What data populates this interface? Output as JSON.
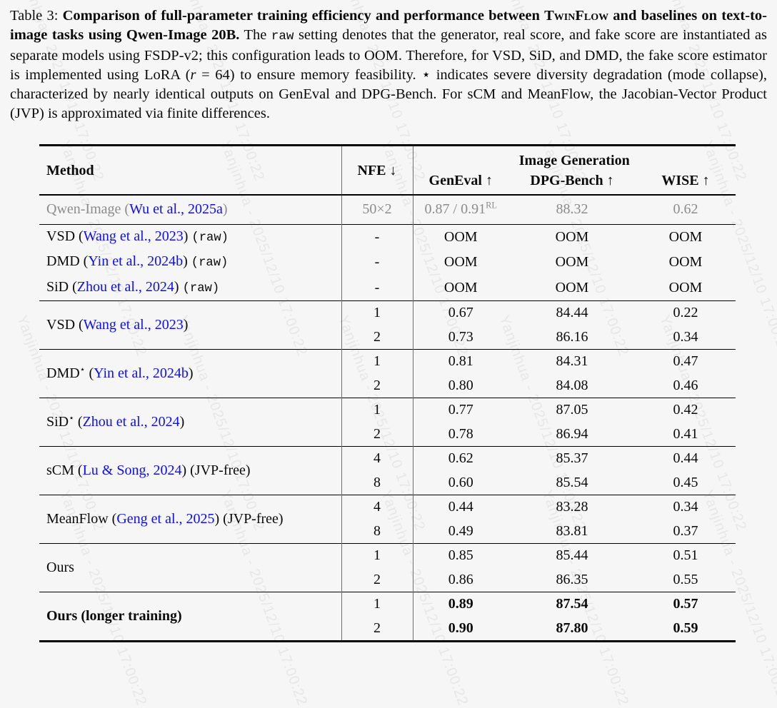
{
  "watermark": {
    "text": "Yanjinhua - 2025/12/10 17:00:22"
  },
  "caption": {
    "parts": [
      {
        "s": "label",
        "t": "Table 3: "
      },
      {
        "s": "bold",
        "t": "Comparison of full-parameter training efficiency and performance between "
      },
      {
        "s": "boldsc",
        "t": "TwinFlow"
      },
      {
        "s": "bold",
        "t": " and baselines on text-to-image tasks using Qwen-Image 20B."
      },
      {
        "t": " The "
      },
      {
        "s": "mono",
        "t": "raw"
      },
      {
        "t": " setting denotes that the generator, real score, and fake score are instantiated as separate models using FSDP-v2; this configuration leads to OOM. Therefore, for VSD, SiD, and DMD, the fake score estimator is implemented using LoRA ("
      },
      {
        "s": "it",
        "t": "r"
      },
      {
        "t": " = 64) to ensure memory feasibility. ⋆ indicates severe diversity degradation (mode collapse), characterized by nearly identical outputs on GenEval and DPG-Bench. For sCM and MeanFlow, the Jacobian-Vector Product (JVP) is approximated via finite differences."
      }
    ]
  },
  "table": {
    "header": {
      "method": "Method",
      "nfe": "NFE ↓",
      "group": "Image Generation",
      "cols": [
        "GenEval ↑",
        "DPG-Bench ↑",
        "WISE ↑"
      ]
    },
    "sections": [
      {
        "muted": true,
        "rows": [
          {
            "method": [
              {
                "t": "Qwen-Image ("
              },
              {
                "s": "cite",
                "t": "Wu et al., 2025a"
              },
              {
                "t": ")"
              }
            ],
            "nfe": "50×2",
            "vals": [
              [
                {
                  "t": "0.87 / 0.91"
                },
                {
                  "s": "sup",
                  "t": "RL"
                }
              ],
              "88.32",
              "0.62"
            ]
          }
        ]
      },
      {
        "rows": [
          {
            "method": [
              {
                "t": "VSD ("
              },
              {
                "s": "cite",
                "t": "Wang et al., 2023"
              },
              {
                "t": ") "
              },
              {
                "s": "mono",
                "t": "(raw)"
              }
            ],
            "nfe": "-",
            "vals": [
              "OOM",
              "OOM",
              "OOM"
            ]
          },
          {
            "method": [
              {
                "t": "DMD ("
              },
              {
                "s": "cite",
                "t": "Yin et al., 2024b"
              },
              {
                "t": ") "
              },
              {
                "s": "mono",
                "t": "(raw)"
              }
            ],
            "nfe": "-",
            "vals": [
              "OOM",
              "OOM",
              "OOM"
            ]
          },
          {
            "method": [
              {
                "t": "SiD ("
              },
              {
                "s": "cite",
                "t": "Zhou et al., 2024"
              },
              {
                "t": ") "
              },
              {
                "s": "mono",
                "t": "(raw)"
              }
            ],
            "nfe": "-",
            "vals": [
              "OOM",
              "OOM",
              "OOM"
            ]
          }
        ]
      },
      {
        "method": [
          {
            "t": "VSD ("
          },
          {
            "s": "cite",
            "t": "Wang et al., 2023"
          },
          {
            "t": ")"
          }
        ],
        "rows": [
          {
            "nfe": "1",
            "vals": [
              "0.67",
              "84.44",
              "0.22"
            ]
          },
          {
            "nfe": "2",
            "vals": [
              "0.73",
              "86.16",
              "0.34"
            ]
          }
        ]
      },
      {
        "method": [
          {
            "t": "DMD"
          },
          {
            "s": "sup",
            "t": "⋆"
          },
          {
            "t": " ("
          },
          {
            "s": "cite",
            "t": "Yin et al., 2024b"
          },
          {
            "t": ")"
          }
        ],
        "rows": [
          {
            "nfe": "1",
            "vals": [
              "0.81",
              "84.31",
              "0.47"
            ]
          },
          {
            "nfe": "2",
            "vals": [
              "0.80",
              "84.08",
              "0.46"
            ]
          }
        ]
      },
      {
        "method": [
          {
            "t": "SiD"
          },
          {
            "s": "sup",
            "t": "⋆"
          },
          {
            "t": " ("
          },
          {
            "s": "cite",
            "t": "Zhou et al., 2024"
          },
          {
            "t": ")"
          }
        ],
        "rows": [
          {
            "nfe": "1",
            "vals": [
              "0.77",
              "87.05",
              "0.42"
            ]
          },
          {
            "nfe": "2",
            "vals": [
              "0.78",
              "86.94",
              "0.41"
            ]
          }
        ]
      },
      {
        "method": [
          {
            "t": "sCM ("
          },
          {
            "s": "cite",
            "t": "Lu & Song, 2024"
          },
          {
            "t": ") (JVP-free)"
          }
        ],
        "rows": [
          {
            "nfe": "4",
            "vals": [
              "0.62",
              "85.37",
              "0.44"
            ]
          },
          {
            "nfe": "8",
            "vals": [
              "0.60",
              "85.54",
              "0.45"
            ]
          }
        ]
      },
      {
        "method": [
          {
            "t": "MeanFlow ("
          },
          {
            "s": "cite",
            "t": "Geng et al., 2025"
          },
          {
            "t": ") (JVP-free)"
          }
        ],
        "rows": [
          {
            "nfe": "4",
            "vals": [
              "0.44",
              "83.28",
              "0.34"
            ]
          },
          {
            "nfe": "8",
            "vals": [
              "0.49",
              "83.81",
              "0.37"
            ]
          }
        ]
      },
      {
        "method": [
          {
            "t": "Ours"
          }
        ],
        "rows": [
          {
            "nfe": "1",
            "vals": [
              "0.85",
              "85.44",
              "0.51"
            ]
          },
          {
            "nfe": "2",
            "vals": [
              "0.86",
              "86.35",
              "0.55"
            ]
          }
        ]
      },
      {
        "bold": true,
        "method": [
          {
            "t": "Ours (longer training)"
          }
        ],
        "rows": [
          {
            "nfe": "1",
            "vals": [
              "0.89",
              "87.54",
              "0.57"
            ]
          },
          {
            "nfe": "2",
            "vals": [
              "0.90",
              "87.80",
              "0.59"
            ]
          }
        ]
      }
    ]
  }
}
